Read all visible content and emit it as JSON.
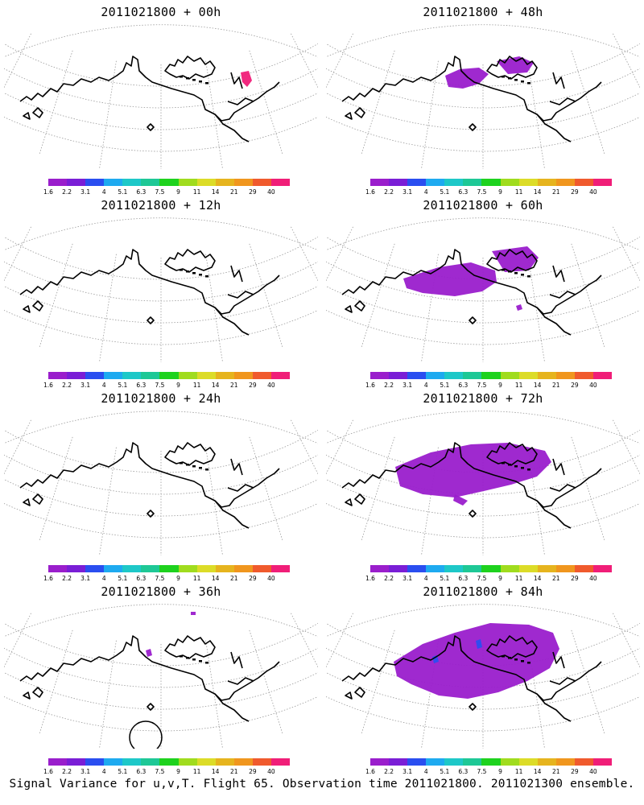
{
  "figure": {
    "caption": "Signal Variance for u,v,T. Flight 65. Observation time 2011021800. 2011021300 ensemble."
  },
  "colorbar": {
    "colors": [
      "#9a1ecc",
      "#7a1ed6",
      "#2a4ef0",
      "#1eaaf0",
      "#1ec8c8",
      "#1ec896",
      "#1ed21e",
      "#a0dc1e",
      "#dcdc28",
      "#e6b41e",
      "#f0961e",
      "#f05a2d",
      "#f01e78"
    ],
    "labels": [
      "1.6",
      "2.2",
      "3.1",
      "4",
      "5.1",
      "6.3",
      "7.5",
      "9",
      "11",
      "14",
      "21",
      "29",
      "40"
    ]
  },
  "panels": [
    {
      "title": "2011021800 + 00h",
      "hours": 0
    },
    {
      "title": "2011021800 + 48h",
      "hours": 48
    },
    {
      "title": "2011021800 + 12h",
      "hours": 12
    },
    {
      "title": "2011021800 + 60h",
      "hours": 60
    },
    {
      "title": "2011021800 + 24h",
      "hours": 24
    },
    {
      "title": "2011021800 + 72h",
      "hours": 72
    },
    {
      "title": "2011021800 + 36h",
      "hours": 36
    },
    {
      "title": "2011021800 + 84h",
      "hours": 84
    }
  ]
}
